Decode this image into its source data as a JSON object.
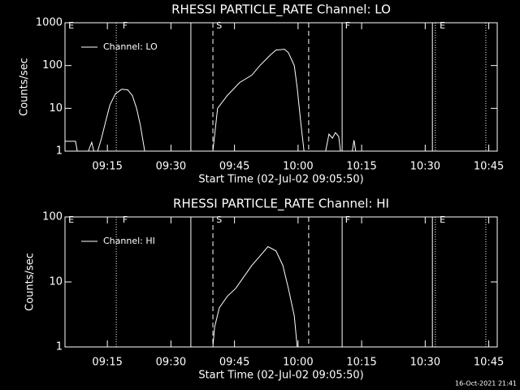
{
  "chart_data": [
    {
      "type": "line",
      "title": "RHESSI PARTICLE_RATE Channel: LO",
      "x_label": "Start Time (02-Jul-02 09:05:50)",
      "y_label": "Counts/sec",
      "log_y": true,
      "xlim": [
        545,
        647
      ],
      "ylim": [
        1,
        1000
      ],
      "yticks": [
        1,
        10,
        100,
        1000
      ],
      "xticks": [
        {
          "value": 555,
          "label": "09:15"
        },
        {
          "value": 570,
          "label": "09:30"
        },
        {
          "value": 585,
          "label": "09:45"
        },
        {
          "value": 600,
          "label": "10:00"
        },
        {
          "value": 615,
          "label": "10:15"
        },
        {
          "value": 630,
          "label": "10:30"
        },
        {
          "value": 645,
          "label": "10:45"
        }
      ],
      "markers": [
        {
          "x": 557.1,
          "style": "dotted"
        },
        {
          "x": 574.7,
          "style": "solid"
        },
        {
          "x": 579.9,
          "style": "dashed"
        },
        {
          "x": 602.5,
          "style": "dashed"
        },
        {
          "x": 610.4,
          "style": "solid"
        },
        {
          "x": 631.7,
          "style": "solid"
        },
        {
          "x": 632.4,
          "style": "dotted"
        },
        {
          "x": 644.3,
          "style": "dotted"
        }
      ],
      "marker_labels": [
        {
          "x": 545.8,
          "text": "E"
        },
        {
          "x": 558.6,
          "text": "F"
        },
        {
          "x": 580.7,
          "text": "S"
        },
        {
          "x": 611.1,
          "text": "F"
        },
        {
          "x": 633.4,
          "text": "E"
        }
      ],
      "x": [
        545.0,
        547.5,
        547.9,
        548.5,
        550.5,
        551.3,
        551.8,
        552.2,
        552.7,
        553.6,
        554.6,
        555.6,
        556.9,
        558.4,
        559.8,
        560.9,
        561.9,
        562.8,
        563.8,
        570,
        579.9,
        581.0,
        583.3,
        586.2,
        589.1,
        591.0,
        593.3,
        594.8,
        596.8,
        597.7,
        599.1,
        599.8,
        600.6,
        601.4,
        603,
        606.5,
        607.3,
        608.1,
        608.8,
        609.6,
        610.0,
        610.5,
        612.8,
        613.2,
        613.6
      ],
      "series": [
        {
          "name": "Channel: LO",
          "color": "#ffffff",
          "values": [
            1.7,
            1.7,
            1,
            null,
            1,
            1.6,
            1,
            null,
            1,
            2,
            5,
            12,
            22,
            28,
            27,
            20,
            10,
            4,
            1,
            null,
            1,
            10,
            20,
            40,
            60,
            100,
            170,
            230,
            240,
            200,
            100,
            30,
            5,
            1,
            null,
            1,
            2.5,
            2,
            2.7,
            2.2,
            1,
            null,
            1,
            1.8,
            1
          ]
        }
      ]
    },
    {
      "type": "line",
      "title": "RHESSI PARTICLE_RATE Channel: HI",
      "x_label": "Start Time (02-Jul-02 09:05:50)",
      "y_label": "Counts/sec",
      "log_y": true,
      "xlim": [
        545,
        647
      ],
      "ylim": [
        1,
        100
      ],
      "yticks": [
        1,
        10,
        100
      ],
      "xticks": [
        {
          "value": 555,
          "label": "09:15"
        },
        {
          "value": 570,
          "label": "09:30"
        },
        {
          "value": 585,
          "label": "09:45"
        },
        {
          "value": 600,
          "label": "10:00"
        },
        {
          "value": 615,
          "label": "10:15"
        },
        {
          "value": 630,
          "label": "10:30"
        },
        {
          "value": 645,
          "label": "10:45"
        }
      ],
      "markers": [
        {
          "x": 557.1,
          "style": "dotted"
        },
        {
          "x": 574.7,
          "style": "solid"
        },
        {
          "x": 579.9,
          "style": "dashed"
        },
        {
          "x": 602.5,
          "style": "dashed"
        },
        {
          "x": 610.4,
          "style": "solid"
        },
        {
          "x": 631.7,
          "style": "solid"
        },
        {
          "x": 632.4,
          "style": "dotted"
        },
        {
          "x": 644.3,
          "style": "dotted"
        }
      ],
      "marker_labels": [
        {
          "x": 545.8,
          "text": "E"
        },
        {
          "x": 558.6,
          "text": "F"
        },
        {
          "x": 580.7,
          "text": "S"
        },
        {
          "x": 611.1,
          "text": "F"
        },
        {
          "x": 633.4,
          "text": "E"
        }
      ],
      "x": [
        579.9,
        580.3,
        581.4,
        583.3,
        585.3,
        587.2,
        589.1,
        591.0,
        592.9,
        594.8,
        596.4,
        597.7,
        599.1,
        599.8
      ],
      "series": [
        {
          "name": "Channel: HI",
          "color": "#ffffff",
          "values": [
            1,
            2,
            4,
            6,
            8,
            12,
            18,
            25,
            35,
            30,
            18,
            8,
            3,
            1
          ]
        }
      ]
    }
  ],
  "footer": "16-Oct-2021 21:41"
}
